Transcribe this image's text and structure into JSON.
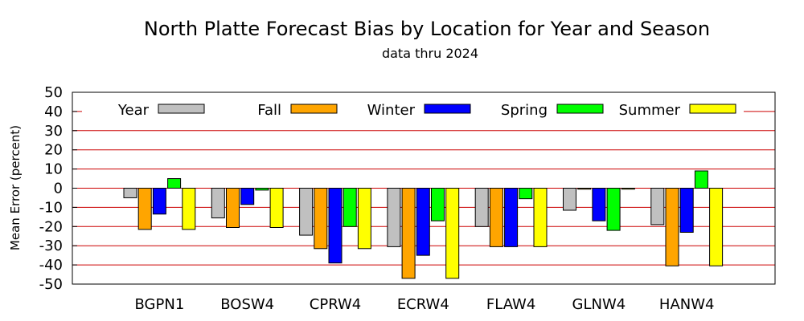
{
  "chart_data": {
    "type": "bar",
    "title": "North Platte Forecast Bias by Location for Year and Season",
    "subtitle": "data thru 2024",
    "xlabel": "",
    "ylabel": "Mean Error (percent)",
    "ylim": [
      -50,
      50
    ],
    "yticks": [
      50,
      40,
      30,
      20,
      10,
      0,
      -10,
      -20,
      -30,
      -40,
      -50
    ],
    "grid": true,
    "legend_position": "top",
    "categories": [
      "BGPN1",
      "BOSW4",
      "CPRW4",
      "ECRW4",
      "FLAW4",
      "GLNW4",
      "HANW4"
    ],
    "series": [
      {
        "name": "Year",
        "color": "#c0c0c0",
        "values": [
          -5,
          -15.5,
          -24.5,
          -30.5,
          -20,
          -11.5,
          -19
        ]
      },
      {
        "name": "Fall",
        "color": "#ffa500",
        "values": [
          -21.5,
          -20.5,
          -31.5,
          -47,
          -30.5,
          -0.5,
          -40.5
        ]
      },
      {
        "name": "Winter",
        "color": "#0000ff",
        "values": [
          -13.5,
          -8.5,
          -39,
          -35,
          -30.5,
          -17,
          -23
        ]
      },
      {
        "name": "Spring",
        "color": "#00ff00",
        "values": [
          5,
          -1,
          -20,
          -17,
          -5.5,
          -22,
          9
        ]
      },
      {
        "name": "Summer",
        "color": "#ffff00",
        "values": [
          -21.5,
          -20.5,
          -31.5,
          -47,
          -30.5,
          -0.5,
          -40.5
        ]
      }
    ]
  }
}
